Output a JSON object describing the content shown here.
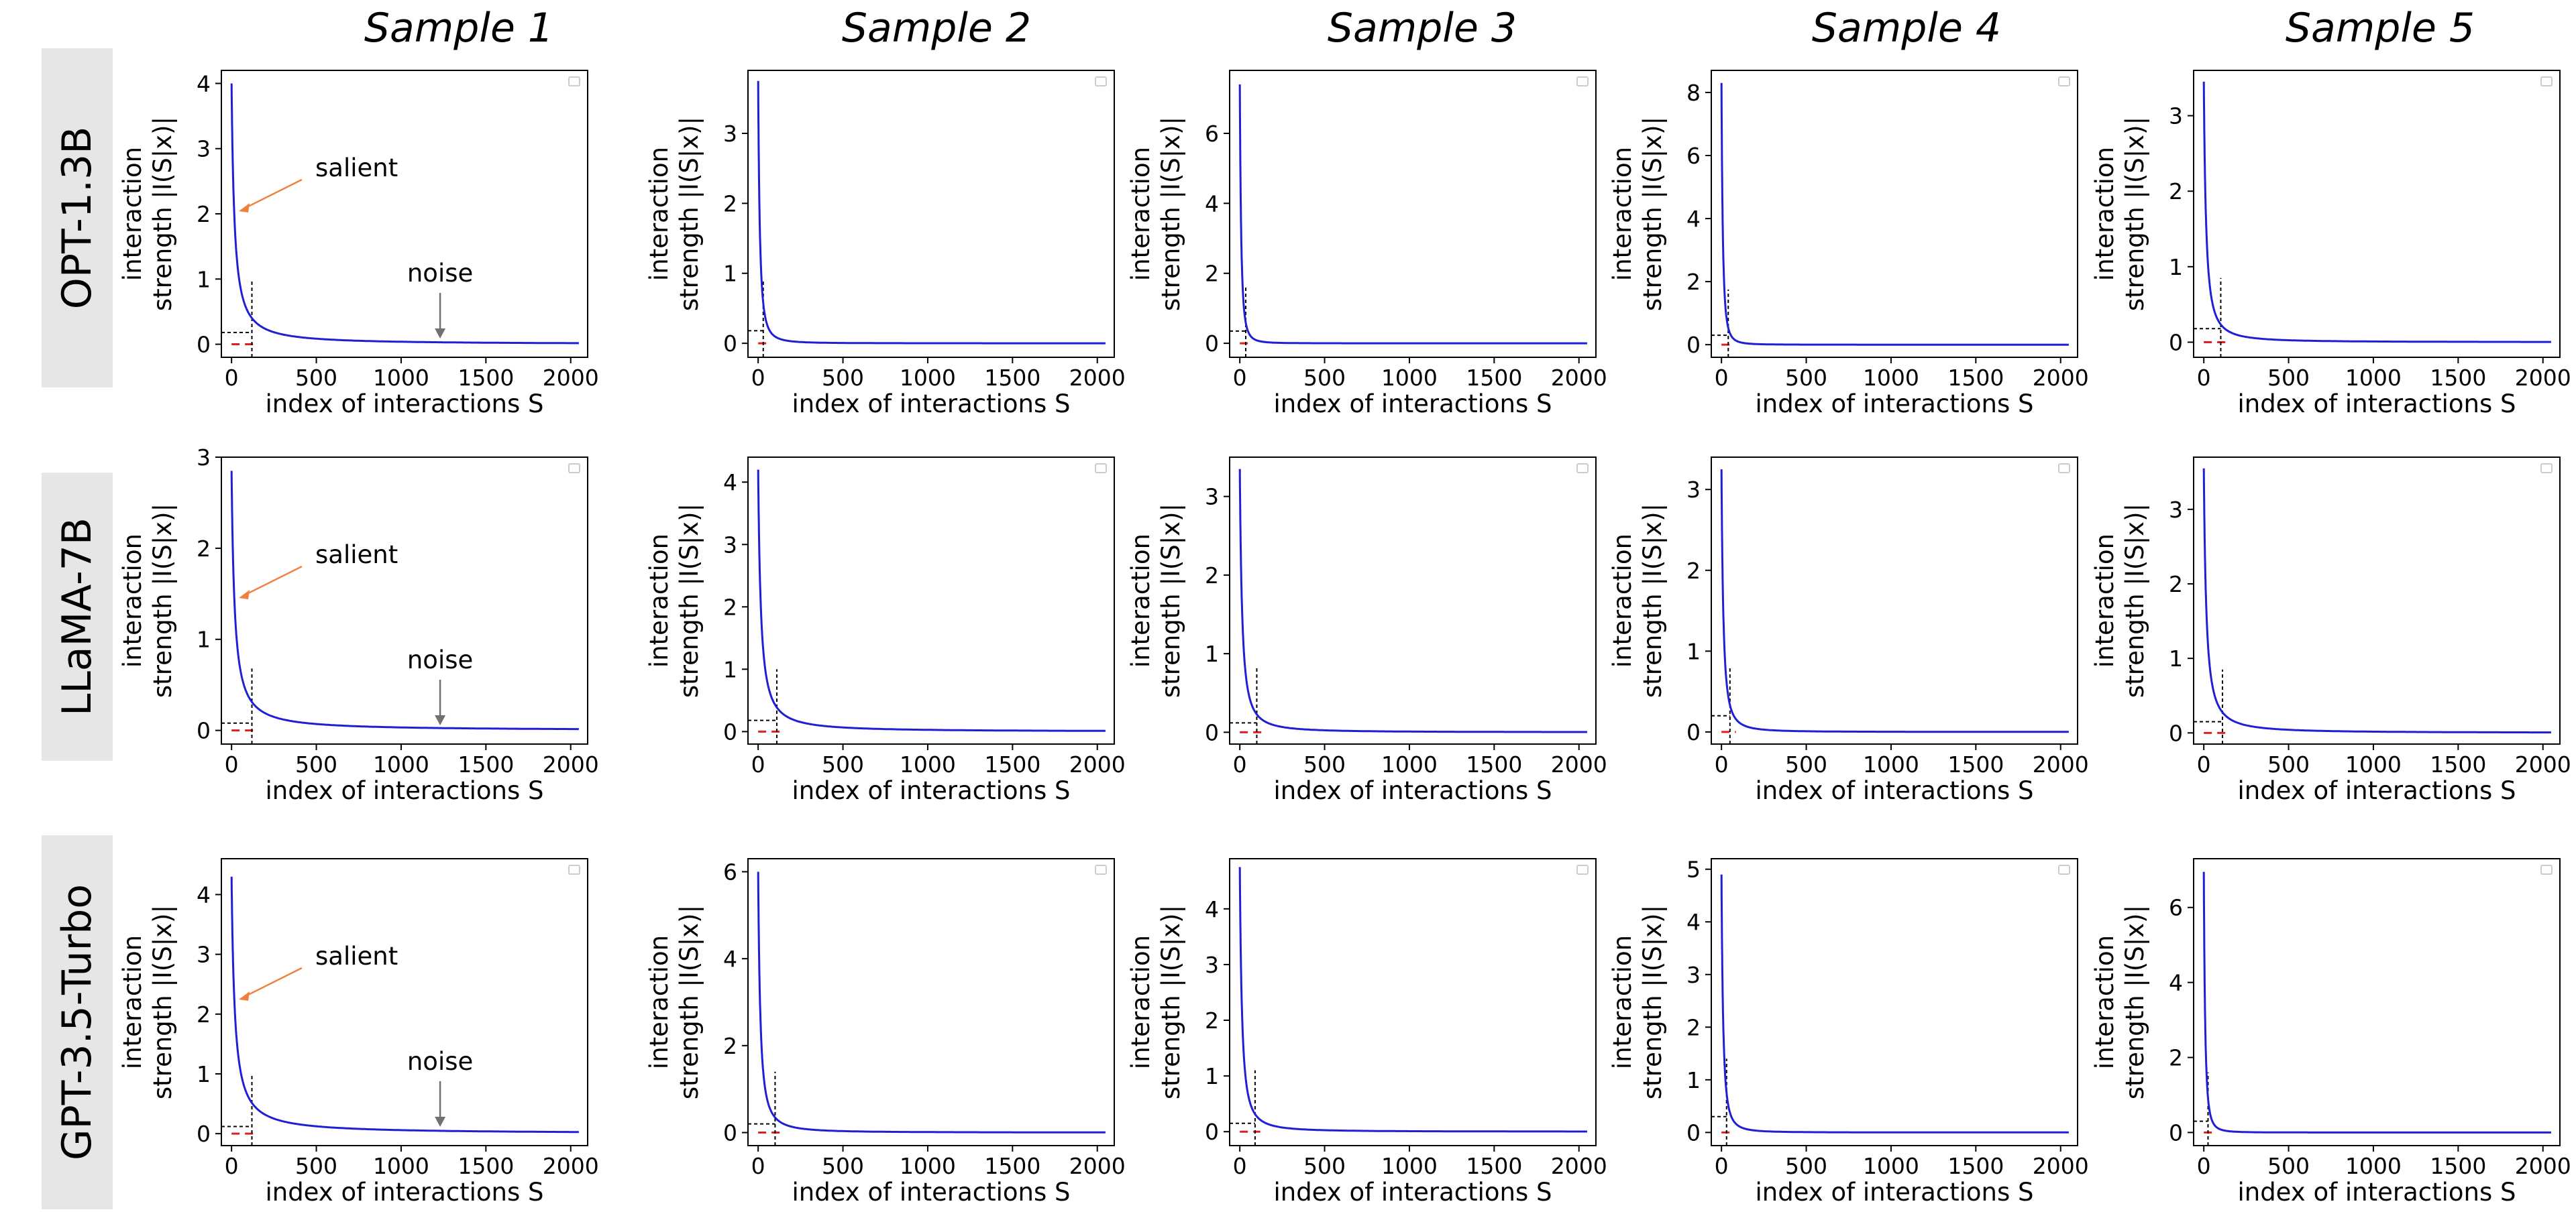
{
  "column_titles": [
    "Sample 1",
    "Sample 2",
    "Sample 3",
    "Sample 4",
    "Sample 5"
  ],
  "row_labels": [
    "OPT-1.3B",
    "LLaMA-7B",
    "GPT-3.5-Turbo"
  ],
  "annotations": {
    "salient": "salient",
    "noise": "noise"
  },
  "colors": {
    "curve": "#1f1fd6",
    "threshold": "#e02020",
    "salient_arrow": "#f08040",
    "noise_arrow": "#707070",
    "row_label_bg": "#e6e6e6"
  },
  "chart_data": [
    {
      "type": "line",
      "row": "OPT-1.3B",
      "column": "Sample 1",
      "xlabel": "index of interactions S",
      "ylabel_line1": "interaction",
      "ylabel_line2": "strength |I(S|x)|",
      "xlim": [
        -60,
        2100
      ],
      "ylim": [
        -0.2,
        4.2
      ],
      "x_ticks": [
        0,
        500,
        1000,
        1500,
        2000
      ],
      "x_tick_labels": [
        "0",
        "500",
        "1000",
        "1500",
        "2000"
      ],
      "y_ticks": [
        0,
        1,
        2,
        3,
        4
      ],
      "y_tick_labels": [
        "0",
        "1",
        "2",
        "3",
        "4"
      ],
      "peak": 4.0,
      "decay": 2.6,
      "threshold_index": 120,
      "threshold_strength": 0.18,
      "guide_top": 1.0,
      "annotated": true
    },
    {
      "type": "line",
      "row": "OPT-1.3B",
      "column": "Sample 2",
      "xlabel": "index of interactions S",
      "ylabel_line1": "interaction",
      "ylabel_line2": "strength |I(S|x)|",
      "xlim": [
        -60,
        2100
      ],
      "ylim": [
        -0.2,
        3.9
      ],
      "x_ticks": [
        0,
        500,
        1000,
        1500,
        2000
      ],
      "x_tick_labels": [
        "0",
        "500",
        "1000",
        "1500",
        "2000"
      ],
      "y_ticks": [
        0,
        1,
        2,
        3
      ],
      "y_tick_labels": [
        "0",
        "1",
        "2",
        "3"
      ],
      "peak": 3.75,
      "decay": 4.5,
      "threshold_index": 30,
      "threshold_strength": 0.18,
      "guide_top": 0.92,
      "annotated": false
    },
    {
      "type": "line",
      "row": "OPT-1.3B",
      "column": "Sample 3",
      "xlabel": "index of interactions S",
      "ylabel_line1": "interaction",
      "ylabel_line2": "strength |I(S|x)|",
      "xlim": [
        -60,
        2100
      ],
      "ylim": [
        -0.4,
        7.8
      ],
      "x_ticks": [
        0,
        500,
        1000,
        1500,
        2000
      ],
      "x_tick_labels": [
        "0",
        "500",
        "1000",
        "1500",
        "2000"
      ],
      "y_ticks": [
        0,
        2,
        4,
        6
      ],
      "y_tick_labels": [
        "0",
        "2",
        "4",
        "6"
      ],
      "peak": 7.4,
      "decay": 5.5,
      "threshold_index": 35,
      "threshold_strength": 0.35,
      "guide_top": 1.6,
      "annotated": false
    },
    {
      "type": "line",
      "row": "OPT-1.3B",
      "column": "Sample 4",
      "xlabel": "index of interactions S",
      "ylabel_line1": "interaction",
      "ylabel_line2": "strength |I(S|x)|",
      "xlim": [
        -60,
        2100
      ],
      "ylim": [
        -0.4,
        8.7
      ],
      "x_ticks": [
        0,
        500,
        1000,
        1500,
        2000
      ],
      "x_tick_labels": [
        "0",
        "500",
        "1000",
        "1500",
        "2000"
      ],
      "y_ticks": [
        0,
        2,
        4,
        6,
        8
      ],
      "y_tick_labels": [
        "0",
        "2",
        "4",
        "6",
        "8"
      ],
      "peak": 8.3,
      "decay": 5.5,
      "threshold_index": 40,
      "threshold_strength": 0.3,
      "guide_top": 1.75,
      "annotated": false
    },
    {
      "type": "line",
      "row": "OPT-1.3B",
      "column": "Sample 5",
      "xlabel": "index of interactions S",
      "ylabel_line1": "interaction",
      "ylabel_line2": "strength |I(S|x)|",
      "xlim": [
        -60,
        2100
      ],
      "ylim": [
        -0.2,
        3.6
      ],
      "x_ticks": [
        0,
        500,
        1000,
        1500,
        2000
      ],
      "x_tick_labels": [
        "0",
        "500",
        "1000",
        "1500",
        "2000"
      ],
      "y_ticks": [
        0,
        1,
        2,
        3
      ],
      "y_tick_labels": [
        "0",
        "1",
        "2",
        "3"
      ],
      "peak": 3.45,
      "decay": 3.3,
      "threshold_index": 100,
      "threshold_strength": 0.18,
      "guide_top": 0.85,
      "annotated": false
    },
    {
      "type": "line",
      "row": "LLaMA-7B",
      "column": "Sample 1",
      "xlabel": "index of interactions S",
      "ylabel_line1": "interaction",
      "ylabel_line2": "strength |I(S|x)|",
      "xlim": [
        -60,
        2100
      ],
      "ylim": [
        -0.15,
        3.0
      ],
      "x_ticks": [
        0,
        500,
        1000,
        1500,
        2000
      ],
      "x_tick_labels": [
        "0",
        "500",
        "1000",
        "1500",
        "2000"
      ],
      "y_ticks": [
        0,
        1,
        2,
        3
      ],
      "y_tick_labels": [
        "0",
        "1",
        "2",
        "3"
      ],
      "peak": 2.85,
      "decay": 2.5,
      "threshold_index": 120,
      "threshold_strength": 0.08,
      "guide_top": 0.68,
      "annotated": true
    },
    {
      "type": "line",
      "row": "LLaMA-7B",
      "column": "Sample 2",
      "xlabel": "index of interactions S",
      "ylabel_line1": "interaction",
      "ylabel_line2": "strength |I(S|x)|",
      "xlim": [
        -60,
        2100
      ],
      "ylim": [
        -0.2,
        4.4
      ],
      "x_ticks": [
        0,
        500,
        1000,
        1500,
        2000
      ],
      "x_tick_labels": [
        "0",
        "500",
        "1000",
        "1500",
        "2000"
      ],
      "y_ticks": [
        0,
        1,
        2,
        3,
        4
      ],
      "y_tick_labels": [
        "0",
        "1",
        "2",
        "3",
        "4"
      ],
      "peak": 4.2,
      "decay": 2.8,
      "threshold_index": 110,
      "threshold_strength": 0.18,
      "guide_top": 1.0,
      "annotated": false
    },
    {
      "type": "line",
      "row": "LLaMA-7B",
      "column": "Sample 3",
      "xlabel": "index of interactions S",
      "ylabel_line1": "interaction",
      "ylabel_line2": "strength |I(S|x)|",
      "xlim": [
        -60,
        2100
      ],
      "ylim": [
        -0.15,
        3.5
      ],
      "x_ticks": [
        0,
        500,
        1000,
        1500,
        2000
      ],
      "x_tick_labels": [
        "0",
        "500",
        "1000",
        "1500",
        "2000"
      ],
      "y_ticks": [
        0,
        1,
        2,
        3
      ],
      "y_tick_labels": [
        "0",
        "1",
        "2",
        "3"
      ],
      "peak": 3.35,
      "decay": 3.3,
      "threshold_index": 100,
      "threshold_strength": 0.12,
      "guide_top": 0.82,
      "annotated": false
    },
    {
      "type": "line",
      "row": "LLaMA-7B",
      "column": "Sample 4",
      "xlabel": "index of interactions S",
      "ylabel_line1": "interaction",
      "ylabel_line2": "strength |I(S|x)|",
      "xlim": [
        -60,
        2100
      ],
      "ylim": [
        -0.15,
        3.4
      ],
      "x_ticks": [
        0,
        500,
        1000,
        1500,
        2000
      ],
      "x_tick_labels": [
        "0",
        "500",
        "1000",
        "1500",
        "2000"
      ],
      "y_ticks": [
        0,
        1,
        2,
        3
      ],
      "y_tick_labels": [
        "0",
        "1",
        "2",
        "3"
      ],
      "peak": 3.25,
      "decay": 4.0,
      "threshold_index": 50,
      "threshold_strength": 0.2,
      "guide_top": 0.8,
      "annotated": false
    },
    {
      "type": "line",
      "row": "LLaMA-7B",
      "column": "Sample 5",
      "xlabel": "index of interactions S",
      "ylabel_line1": "interaction",
      "ylabel_line2": "strength |I(S|x)|",
      "xlim": [
        -60,
        2100
      ],
      "ylim": [
        -0.15,
        3.7
      ],
      "x_ticks": [
        0,
        500,
        1000,
        1500,
        2000
      ],
      "x_tick_labels": [
        "0",
        "500",
        "1000",
        "1500",
        "2000"
      ],
      "y_ticks": [
        0,
        1,
        2,
        3
      ],
      "y_tick_labels": [
        "0",
        "1",
        "2",
        "3"
      ],
      "peak": 3.55,
      "decay": 3.0,
      "threshold_index": 110,
      "threshold_strength": 0.15,
      "guide_top": 0.85,
      "annotated": false
    },
    {
      "type": "line",
      "row": "GPT-3.5-Turbo",
      "column": "Sample 1",
      "xlabel": "index of interactions S",
      "ylabel_line1": "interaction",
      "ylabel_line2": "strength |I(S|x)|",
      "xlim": [
        -60,
        2100
      ],
      "ylim": [
        -0.2,
        4.6
      ],
      "x_ticks": [
        0,
        500,
        1000,
        1500,
        2000
      ],
      "x_tick_labels": [
        "0",
        "500",
        "1000",
        "1500",
        "2000"
      ],
      "y_ticks": [
        0,
        1,
        2,
        3,
        4
      ],
      "y_tick_labels": [
        "0",
        "1",
        "2",
        "3",
        "4"
      ],
      "peak": 4.3,
      "decay": 2.4,
      "threshold_index": 120,
      "threshold_strength": 0.12,
      "guide_top": 1.0,
      "annotated": true
    },
    {
      "type": "line",
      "row": "GPT-3.5-Turbo",
      "column": "Sample 2",
      "xlabel": "index of interactions S",
      "ylabel_line1": "interaction",
      "ylabel_line2": "strength |I(S|x)|",
      "xlim": [
        -60,
        2100
      ],
      "ylim": [
        -0.3,
        6.3
      ],
      "x_ticks": [
        0,
        500,
        1000,
        1500,
        2000
      ],
      "x_tick_labels": [
        "0",
        "500",
        "1000",
        "1500",
        "2000"
      ],
      "y_ticks": [
        0,
        2,
        4,
        6
      ],
      "y_tick_labels": [
        "0",
        "2",
        "4",
        "6"
      ],
      "peak": 6.0,
      "decay": 3.5,
      "threshold_index": 100,
      "threshold_strength": 0.2,
      "guide_top": 1.4,
      "annotated": false
    },
    {
      "type": "line",
      "row": "GPT-3.5-Turbo",
      "column": "Sample 3",
      "xlabel": "index of interactions S",
      "ylabel_line1": "interaction",
      "ylabel_line2": "strength |I(S|x)|",
      "xlim": [
        -60,
        2100
      ],
      "ylim": [
        -0.25,
        4.9
      ],
      "x_ticks": [
        0,
        500,
        1000,
        1500,
        2000
      ],
      "x_tick_labels": [
        "0",
        "500",
        "1000",
        "1500",
        "2000"
      ],
      "y_ticks": [
        0,
        1,
        2,
        3,
        4
      ],
      "y_tick_labels": [
        "0",
        "1",
        "2",
        "3",
        "4"
      ],
      "peak": 4.75,
      "decay": 3.5,
      "threshold_index": 90,
      "threshold_strength": 0.15,
      "guide_top": 1.1,
      "annotated": false
    },
    {
      "type": "line",
      "row": "GPT-3.5-Turbo",
      "column": "Sample 4",
      "xlabel": "index of interactions S",
      "ylabel_line1": "interaction",
      "ylabel_line2": "strength |I(S|x)|",
      "xlim": [
        -60,
        2100
      ],
      "ylim": [
        -0.25,
        5.2
      ],
      "x_ticks": [
        0,
        500,
        1000,
        1500,
        2000
      ],
      "x_tick_labels": [
        "0",
        "500",
        "1000",
        "1500",
        "2000"
      ],
      "y_ticks": [
        0,
        1,
        2,
        3,
        4,
        5
      ],
      "y_tick_labels": [
        "0",
        "1",
        "2",
        "3",
        "4",
        "5"
      ],
      "peak": 4.9,
      "decay": 4.5,
      "threshold_index": 30,
      "threshold_strength": 0.3,
      "guide_top": 1.4,
      "annotated": false
    },
    {
      "type": "line",
      "row": "GPT-3.5-Turbo",
      "column": "Sample 5",
      "xlabel": "index of interactions S",
      "ylabel_line1": "interaction",
      "ylabel_line2": "strength |I(S|x)|",
      "xlim": [
        -60,
        2100
      ],
      "ylim": [
        -0.35,
        7.3
      ],
      "x_ticks": [
        0,
        500,
        1000,
        1500,
        2000
      ],
      "x_tick_labels": [
        "0",
        "500",
        "1000",
        "1500",
        "2000"
      ],
      "y_ticks": [
        0,
        2,
        4,
        6
      ],
      "y_tick_labels": [
        "0",
        "2",
        "4",
        "6"
      ],
      "peak": 6.95,
      "decay": 5.5,
      "threshold_index": 25,
      "threshold_strength": 0.3,
      "guide_top": 1.6,
      "annotated": false
    }
  ]
}
